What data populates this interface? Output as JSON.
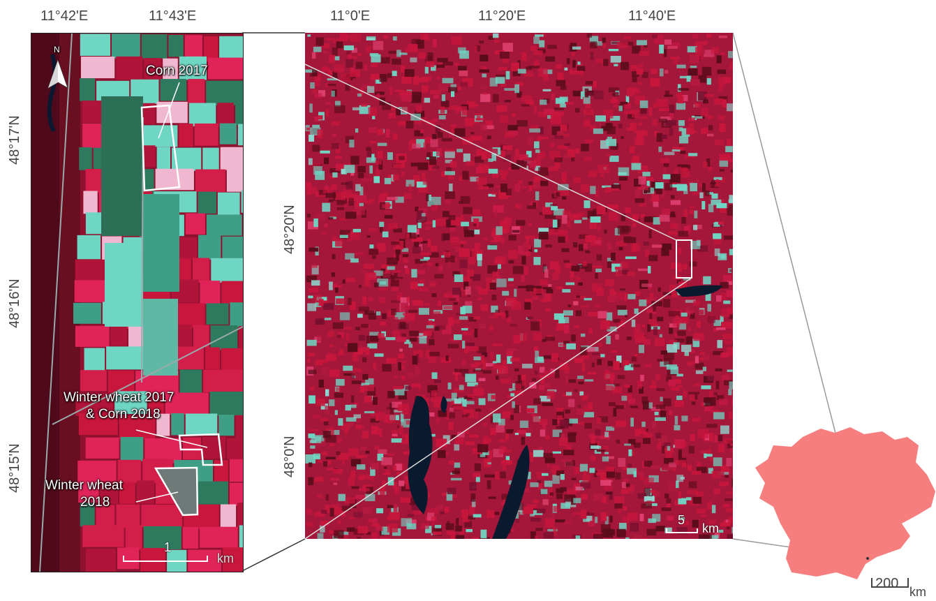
{
  "left_map": {
    "lon_ticks": [
      "11°42'E",
      "11°43'E"
    ],
    "lat_ticks": [
      "48°17'N",
      "48°16'N",
      "48°15'N"
    ],
    "north_label": "N",
    "annotations": {
      "corn2017": "Corn 2017",
      "ww2017_line1": "Winter wheat 2017",
      "ww2017_line2": "& Corn 2018",
      "ww2018_line1": "Winter wheat",
      "ww2018_line2": "2018"
    },
    "scalebar": {
      "value": "1",
      "unit": "km"
    }
  },
  "middle_map": {
    "lon_ticks": [
      "11°0'E",
      "11°20'E",
      "11°40'E"
    ],
    "lat_ticks": [
      "48°20'N",
      "48°0'N"
    ],
    "scalebar": {
      "value": "5",
      "unit": "km"
    }
  },
  "country_map": {
    "scalebar": {
      "value": "200",
      "unit": "km"
    },
    "fill_color": "#f77e7e"
  },
  "colors": {
    "vegetation_red": "#c8163c",
    "bare_cyan": "#6fd6c4",
    "dark_forest": "#5a0c1c",
    "water": "#0a1a2e"
  }
}
